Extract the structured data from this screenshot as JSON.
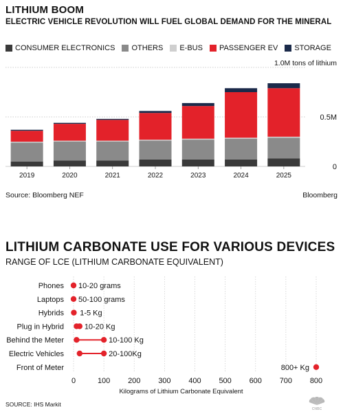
{
  "chart_data": [
    {
      "type": "bar",
      "stacked": true,
      "title": "LITHIUM BOOM",
      "subtitle": "ELECTRIC VEHICLE REVOLUTION WILL FUEL GLOBAL DEMAND FOR THE MINERAL",
      "ylabel": "1.0M tons of lithium",
      "ylim": [
        0,
        1.0
      ],
      "y_ticks": [
        {
          "value": 0,
          "label": "0"
        },
        {
          "value": 0.5,
          "label": "0.5M"
        },
        {
          "value": 1.0,
          "label": "1.0M tons of lithium"
        }
      ],
      "categories": [
        "2019",
        "2020",
        "2021",
        "2022",
        "2023",
        "2024",
        "2025"
      ],
      "series": [
        {
          "name": "CONSUMER ELECTRONICS",
          "color": "#3a3a3a",
          "values": [
            0.05,
            0.06,
            0.06,
            0.07,
            0.07,
            0.07,
            0.08
          ]
        },
        {
          "name": "OTHERS",
          "color": "#8a8a8a",
          "values": [
            0.19,
            0.19,
            0.19,
            0.19,
            0.2,
            0.21,
            0.21
          ]
        },
        {
          "name": "E-BUS",
          "color": "#cfcfcf",
          "values": [
            0.01,
            0.01,
            0.01,
            0.01,
            0.01,
            0.01,
            0.01
          ]
        },
        {
          "name": "PASSENGER EV",
          "color": "#e3222a",
          "values": [
            0.11,
            0.17,
            0.21,
            0.27,
            0.33,
            0.46,
            0.49
          ]
        },
        {
          "name": "STORAGE",
          "color": "#1b2a4a",
          "values": [
            0.01,
            0.01,
            0.01,
            0.02,
            0.03,
            0.04,
            0.05
          ]
        }
      ],
      "grid": true,
      "legend_position": "top",
      "source": "Source: Bloomberg NEF",
      "credit": "Bloomberg"
    },
    {
      "type": "range",
      "title": "LITHIUM CARBONATE USE FOR VARIOUS DEVICES",
      "subtitle": "RANGE OF LCE (LITHIUM CARBONATE EQUIVALENT)",
      "xlabel": "Kilograms of Lithium Carbonate Equivalent",
      "xlim": [
        0,
        800
      ],
      "x_ticks": [
        0,
        100,
        200,
        300,
        400,
        500,
        600,
        700,
        800
      ],
      "color": "#e3222a",
      "items": [
        {
          "device": "Phones",
          "min": 0.01,
          "max": 0.02,
          "label": "10-20 grams"
        },
        {
          "device": "Laptops",
          "min": 0.05,
          "max": 0.1,
          "label": "50-100 grams"
        },
        {
          "device": "Hybrids",
          "min": 1,
          "max": 5,
          "label": "1-5 Kg"
        },
        {
          "device": "Plug in Hybrid",
          "min": 10,
          "max": 20,
          "label": "10-20 Kg"
        },
        {
          "device": "Behind the Meter",
          "min": 10,
          "max": 100,
          "label": "10-100 Kg"
        },
        {
          "device": "Electric Vehicles",
          "min": 20,
          "max": 100,
          "label": "20-100Kg"
        },
        {
          "device": "Front of Meter",
          "min": 800,
          "max": 800,
          "label": "800+ Kg",
          "label_side": "left"
        }
      ],
      "grid": true,
      "source": "SOURCE: IHS Markit"
    }
  ]
}
